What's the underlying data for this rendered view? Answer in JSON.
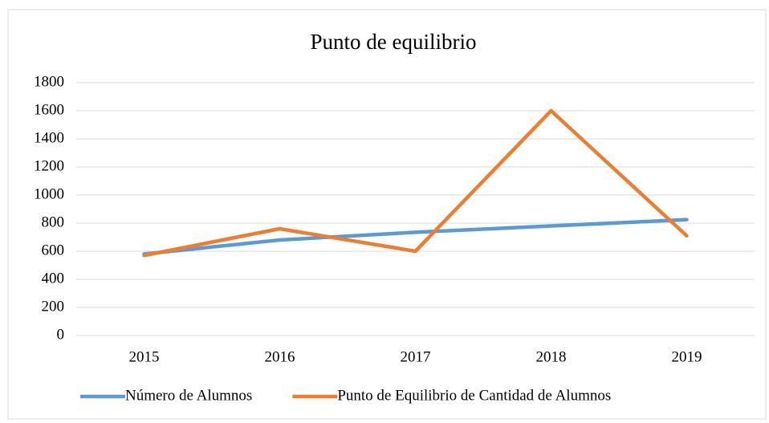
{
  "chart_data": {
    "type": "line",
    "title": "Punto de equilibrio",
    "categories": [
      "2015",
      "2016",
      "2017",
      "2018",
      "2019"
    ],
    "series": [
      {
        "name": "Número de Alumnos",
        "color": "#5b9bd5",
        "values": [
          580,
          680,
          735,
          780,
          825
        ]
      },
      {
        "name": "Punto de Equilibrio de Cantidad de Alumnos",
        "color": "#ed7d31",
        "values": [
          570,
          760,
          600,
          1600,
          710
        ]
      }
    ],
    "ylim": [
      0,
      1800
    ],
    "yticks": [
      0,
      200,
      400,
      600,
      800,
      1000,
      1200,
      1400,
      1600,
      1800
    ],
    "grid": true,
    "legend": "bottom"
  }
}
